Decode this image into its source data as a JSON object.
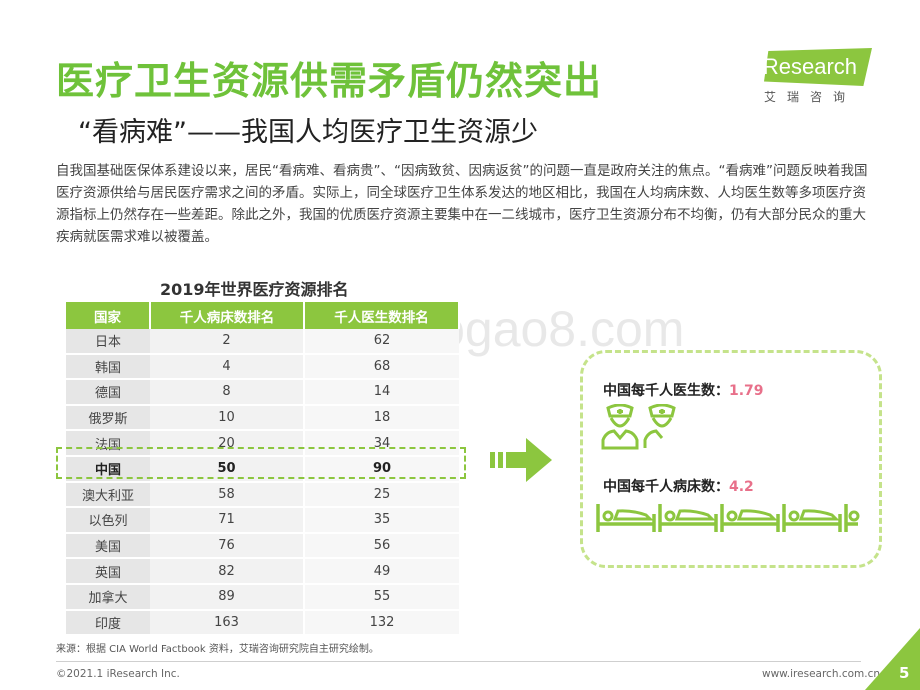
{
  "header": {
    "title": "医疗卫生资源供需矛盾仍然突出",
    "subtitle": "“看病难”——我国人均医疗卫生资源少"
  },
  "logo": {
    "text": "iResearch",
    "sub": "艾瑞咨询"
  },
  "intro": "自我国基础医保体系建设以来，居民“看病难、看病贵”、“因病致贫、因病返贫”的问题一直是政府关注的焦点。“看病难”问题反映着我国医疗资源供给与居民医疗需求之间的矛盾。实际上，同全球医疗卫生体系发达的地区相比，我国在人均病床数、人均医生数等多项医疗资源指标上仍然存在一些差距。除此之外，我国的优质医疗资源主要集中在一二线城市，医疗卫生资源分布不均衡，仍有大部分民众的重大疾病就医需求难以被覆盖。",
  "table": {
    "title": "2019年世界医疗资源排名",
    "headers": [
      "国家",
      "千人病床数排名",
      "千人医生数排名"
    ],
    "rows": [
      [
        "日本",
        "2",
        "62"
      ],
      [
        "韩国",
        "4",
        "68"
      ],
      [
        "德国",
        "8",
        "14"
      ],
      [
        "俄罗斯",
        "10",
        "18"
      ],
      [
        "法国",
        "20",
        "34"
      ],
      [
        "中国",
        "50",
        "90"
      ],
      [
        "澳大利亚",
        "58",
        "25"
      ],
      [
        "以色列",
        "71",
        "35"
      ],
      [
        "美国",
        "76",
        "56"
      ],
      [
        "英国",
        "82",
        "49"
      ],
      [
        "加拿大",
        "89",
        "55"
      ],
      [
        "印度",
        "163",
        "132"
      ]
    ],
    "highlight_row": 5
  },
  "panel": {
    "doctors_label": "中国每千人医生数：",
    "doctors_value": "1.79",
    "beds_label": "中国每千人病床数：",
    "beds_value": "4.2",
    "icon_color": "#8cc63f"
  },
  "watermark": "www.baogao8.com",
  "footer": {
    "source": "来源：根据 CIA World Factbook 资料，艾瑞咨询研究院自主研究绘制。",
    "copyright": "©2021.1 iResearch Inc.",
    "website": "www.iresearch.com.cn",
    "page": "5"
  }
}
